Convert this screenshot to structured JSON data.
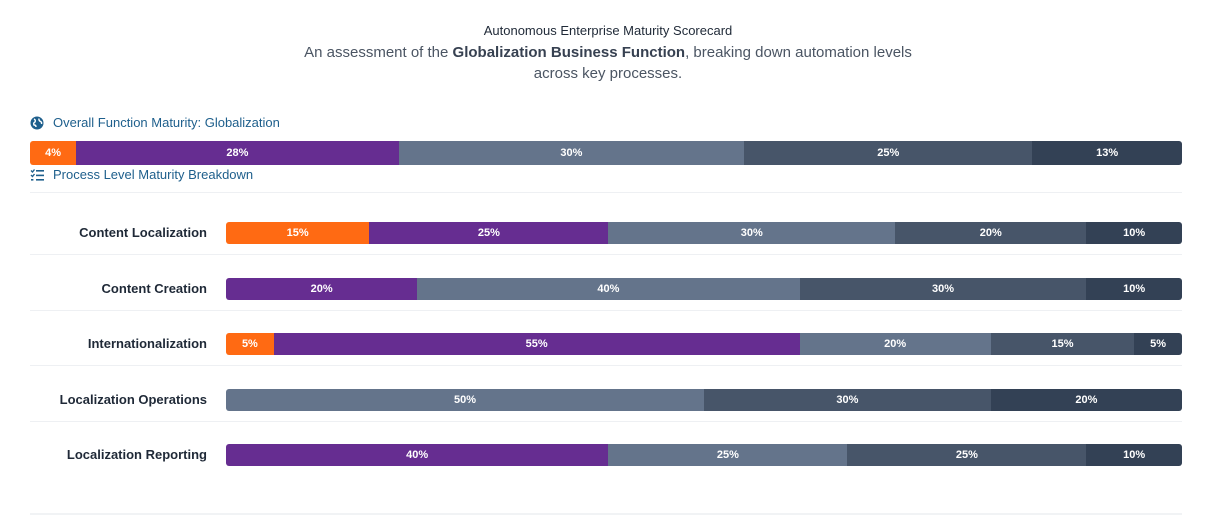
{
  "header": {
    "title": "Autonomous Enterprise Maturity Scorecard",
    "subtitle_pre": "An assessment of the ",
    "subtitle_bold": "Globalization Business Function",
    "subtitle_post": ", breaking down automation levels across key processes."
  },
  "sections": {
    "overall_label": "Overall Function Maturity: Globalization",
    "breakdown_label": "Process Level Maturity Breakdown"
  },
  "colors": [
    "#ff6a13",
    "#662d91",
    "#64748b",
    "#475569",
    "#334155"
  ],
  "chart_data": {
    "type": "bar",
    "stacked": true,
    "orientation": "horizontal",
    "overall": {
      "values": [
        4,
        28,
        30,
        25,
        13
      ]
    },
    "categories": [
      "Content Localization",
      "Content Creation",
      "Internationalization",
      "Localization Operations",
      "Localization Reporting"
    ],
    "rows": [
      {
        "values": [
          15,
          25,
          30,
          20,
          10
        ]
      },
      {
        "values": [
          0,
          20,
          40,
          30,
          10
        ]
      },
      {
        "values": [
          5,
          55,
          20,
          15,
          5
        ]
      },
      {
        "values": [
          0,
          0,
          50,
          30,
          20
        ]
      },
      {
        "values": [
          0,
          40,
          25,
          25,
          10
        ]
      }
    ]
  }
}
